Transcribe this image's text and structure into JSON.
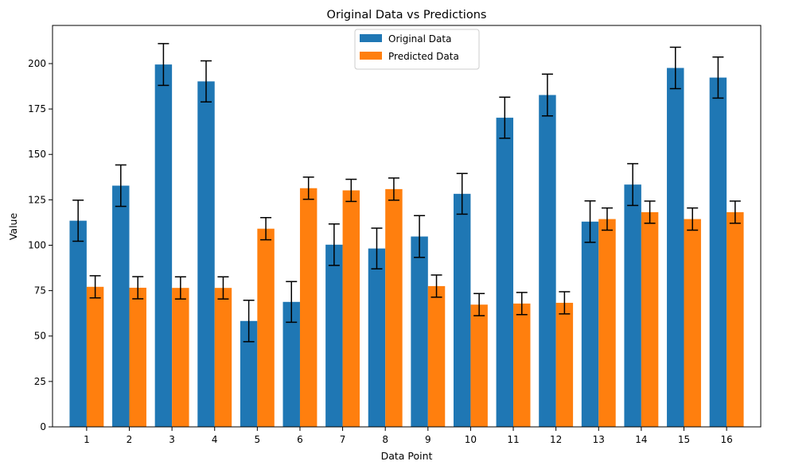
{
  "chart_data": {
    "type": "bar",
    "title": "Original Data vs Predictions",
    "xlabel": "Data Point",
    "ylabel": "Value",
    "categories": [
      "1",
      "2",
      "3",
      "4",
      "5",
      "6",
      "7",
      "8",
      "9",
      "10",
      "11",
      "12",
      "13",
      "14",
      "15",
      "16"
    ],
    "ylim": [
      0,
      221
    ],
    "yticks": [
      0,
      25,
      50,
      75,
      100,
      125,
      150,
      175,
      200
    ],
    "legend_position": "top-center",
    "grid": false,
    "series": [
      {
        "name": "Original Data",
        "color": "#1f77b4",
        "values": [
          113.5,
          132.8,
          199.5,
          190.2,
          58.3,
          68.8,
          100.3,
          98.2,
          104.8,
          128.3,
          170.2,
          182.7,
          113.0,
          133.4,
          197.6,
          192.3
        ],
        "errors": [
          11.3,
          11.4,
          11.5,
          11.3,
          11.4,
          11.2,
          11.4,
          11.2,
          11.5,
          11.2,
          11.3,
          11.5,
          11.4,
          11.5,
          11.4,
          11.3
        ]
      },
      {
        "name": "Predicted Data",
        "color": "#ff7f0e",
        "values": [
          77.1,
          76.6,
          76.5,
          76.5,
          109.1,
          131.4,
          130.2,
          130.9,
          77.5,
          67.3,
          67.9,
          68.3,
          114.4,
          118.2,
          114.4,
          118.2
        ],
        "errors": [
          6.1,
          6.1,
          6.1,
          6.1,
          6.1,
          6.1,
          6.1,
          6.1,
          6.1,
          6.1,
          6.1,
          6.1,
          6.1,
          6.1,
          6.1,
          6.1
        ]
      }
    ]
  }
}
